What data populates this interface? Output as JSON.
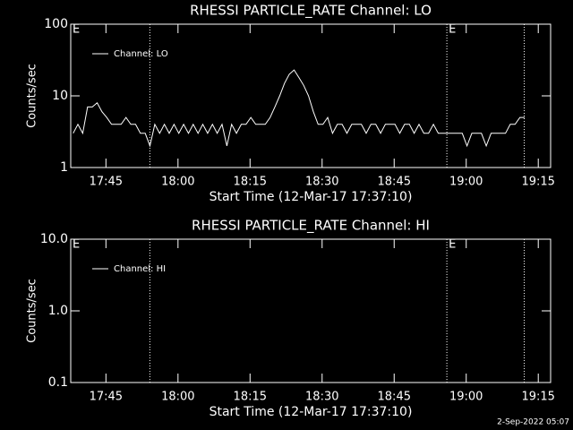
{
  "chart_data": [
    {
      "type": "line",
      "title": "RHESSI PARTICLE_RATE Channel: LO",
      "xlabel": "Start Time (12-Mar-17 17:37:10)",
      "ylabel": "Counts/sec",
      "xlim": [
        0.5,
        100.4
      ],
      "xticks": [
        {
          "value": 7.83,
          "label": "17:45"
        },
        {
          "value": 22.83,
          "label": "18:00"
        },
        {
          "value": 37.83,
          "label": "18:15"
        },
        {
          "value": 52.83,
          "label": "18:30"
        },
        {
          "value": 67.83,
          "label": "18:45"
        },
        {
          "value": 82.83,
          "label": "19:00"
        },
        {
          "value": 97.83,
          "label": "19:15"
        }
      ],
      "ylim": [
        1,
        100
      ],
      "yticks": [
        1,
        10,
        100
      ],
      "log_y": true,
      "legend": "upper left",
      "vlines": [
        16.97,
        78.8,
        94.9
      ],
      "annotations": [
        {
          "text": "E",
          "x": 0.5
        },
        {
          "text": "E",
          "x": 78.8
        }
      ],
      "series": [
        {
          "name": "Channel: LO",
          "color": "#ffffff",
          "x": [
            1,
            2,
            3,
            4,
            5,
            6,
            7,
            8,
            9,
            10,
            11,
            12,
            13,
            14,
            15,
            16,
            17,
            18,
            19,
            20,
            21,
            22,
            23,
            24,
            25,
            26,
            27,
            28,
            29,
            30,
            31,
            32,
            33,
            34,
            35,
            36,
            37,
            38,
            39,
            40,
            41,
            42,
            43,
            44,
            45,
            46,
            47,
            48,
            49,
            50,
            51,
            52,
            53,
            54,
            55,
            56,
            57,
            58,
            59,
            60,
            61,
            62,
            63,
            64,
            65,
            66,
            67,
            68,
            69,
            70,
            71,
            72,
            73,
            74,
            75,
            76,
            77,
            78,
            79,
            80,
            81,
            82,
            83,
            84,
            85,
            86,
            87,
            88,
            89,
            90,
            91,
            92,
            93,
            94,
            95
          ],
          "values": [
            3,
            4,
            3,
            7,
            7,
            8,
            6,
            5,
            4,
            4,
            4,
            5,
            4,
            4,
            3,
            3,
            2,
            4,
            3,
            4,
            3,
            4,
            3,
            4,
            3,
            4,
            3,
            4,
            3,
            4,
            3,
            4,
            2,
            4,
            3,
            4,
            4,
            5,
            4,
            4,
            4,
            5,
            7,
            10,
            15,
            20,
            23,
            18,
            14,
            10,
            6,
            4,
            4,
            5,
            3,
            4,
            4,
            3,
            4,
            4,
            4,
            3,
            4,
            4,
            3,
            4,
            4,
            4,
            3,
            4,
            4,
            3,
            4,
            3,
            3,
            4,
            3,
            3,
            3,
            3,
            3,
            3,
            2,
            3,
            3,
            3,
            2,
            3,
            3,
            3,
            3,
            4,
            4,
            5,
            5
          ]
        }
      ]
    },
    {
      "type": "line",
      "title": "RHESSI PARTICLE_RATE Channel: HI",
      "xlabel": "Start Time (12-Mar-17 17:37:10)",
      "ylabel": "Counts/sec",
      "xlim": [
        0.5,
        100.4
      ],
      "xticks": [
        {
          "value": 7.83,
          "label": "17:45"
        },
        {
          "value": 22.83,
          "label": "18:00"
        },
        {
          "value": 37.83,
          "label": "18:15"
        },
        {
          "value": 52.83,
          "label": "18:30"
        },
        {
          "value": 67.83,
          "label": "18:45"
        },
        {
          "value": 82.83,
          "label": "19:00"
        },
        {
          "value": 97.83,
          "label": "19:15"
        }
      ],
      "ylim": [
        0.1,
        10
      ],
      "yticks": [
        0.1,
        {
          "value": 1,
          "label": "1.0"
        },
        {
          "value": 10,
          "label": "10.0"
        }
      ],
      "log_y": true,
      "legend": "upper left",
      "vlines": [
        16.97,
        78.8,
        94.9
      ],
      "annotations": [
        {
          "text": "E",
          "x": 0.5
        },
        {
          "text": "E",
          "x": 78.8
        }
      ],
      "series": [
        {
          "name": "Channel: HI",
          "color": "#ffffff",
          "x": [],
          "values": []
        }
      ]
    }
  ],
  "footer": "2-Sep-2022 05:07"
}
